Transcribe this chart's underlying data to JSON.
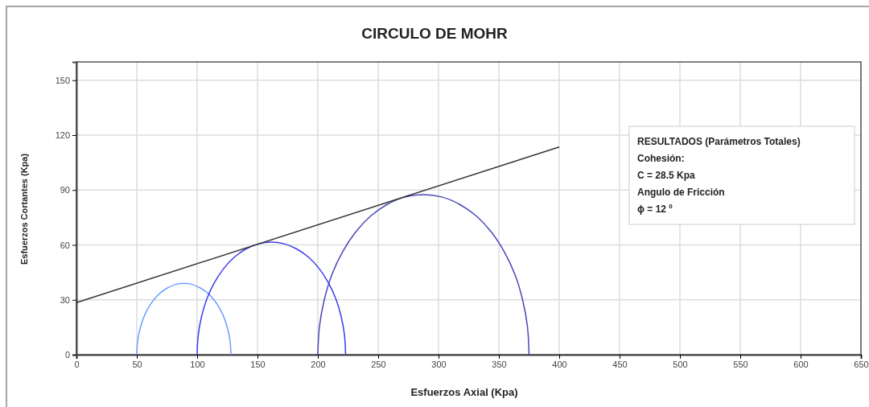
{
  "chart_data": {
    "type": "line",
    "title": "CIRCULO DE MOHR",
    "xlabel": "Esfuerzos Axial  (Kpa)",
    "ylabel": "Esfuerzos Cortantes (Kpa)",
    "xlim": [
      0,
      650
    ],
    "xticks": [
      0,
      50,
      100,
      150,
      200,
      250,
      300,
      350,
      400,
      450,
      500,
      550,
      600,
      650
    ],
    "ylim": [
      0,
      160
    ],
    "yticks": [
      0,
      30,
      60,
      90,
      120,
      150
    ],
    "grid": true,
    "marker": "none",
    "line_style": "solid",
    "series": [
      {
        "color": "#6fa0ff",
        "x": [
          50,
          50.6,
          52.4,
          55.2,
          59.1,
          63.9,
          69.5,
          75.7,
          82.2,
          89,
          95.8,
          102.3,
          108.5,
          114.1,
          118.9,
          122.8,
          125.6,
          127.4,
          128
        ],
        "values": [
          0,
          6.8,
          13.3,
          19.5,
          25.1,
          29.9,
          33.8,
          36.6,
          38.4,
          39,
          38.4,
          36.6,
          33.8,
          29.9,
          25.1,
          19.5,
          13.3,
          6.8,
          0
        ]
      },
      {
        "color": "#3c3cf0",
        "x": [
          100,
          100.9,
          103.7,
          108.2,
          114.4,
          122,
          130.8,
          140.5,
          150.8,
          161.5,
          172.2,
          182.5,
          192.3,
          201.1,
          208.6,
          214.8,
          219.3,
          222.1,
          223
        ],
        "values": [
          0,
          10.7,
          21,
          30.8,
          39.5,
          47.1,
          53.3,
          57.8,
          60.6,
          61.5,
          60.6,
          57.8,
          53.3,
          47.1,
          39.5,
          30.8,
          21,
          10.7,
          0
        ]
      },
      {
        "color": "#4848b8",
        "x": [
          200,
          201.3,
          205.3,
          211.7,
          220.5,
          231.3,
          243.8,
          257.6,
          272.3,
          287.5,
          302.7,
          317.4,
          331.3,
          343.8,
          354.5,
          363.3,
          369.7,
          373.7,
          375
        ],
        "values": [
          0,
          15.2,
          29.9,
          43.8,
          56.2,
          67,
          75.8,
          82.2,
          86.2,
          87.5,
          86.2,
          82.2,
          75.8,
          67,
          56.2,
          43.8,
          29.9,
          15.2,
          0
        ]
      },
      {
        "color": "#333333",
        "x": [
          0,
          400
        ],
        "values": [
          28.5,
          113.5
        ]
      }
    ],
    "annotations": [
      "RESULTADOS (Parámetros Totales)",
      "Cohesión:",
      "C =  28.5 Kpa",
      "Angulo de Fricción",
      "ϕ =  12 º"
    ]
  }
}
